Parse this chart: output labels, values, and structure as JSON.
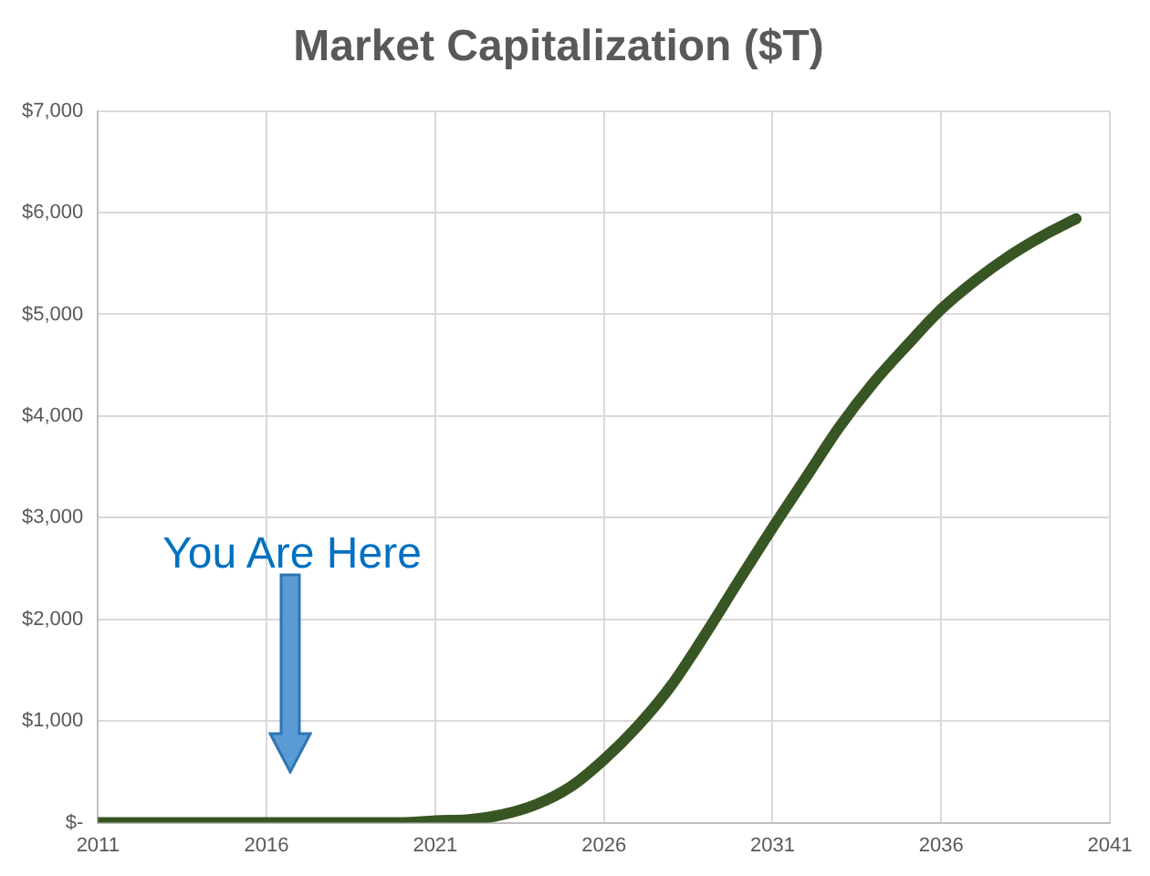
{
  "chart_data": {
    "type": "line",
    "title": "Market Capitalization ($T)",
    "x": [
      2011,
      2012,
      2013,
      2014,
      2015,
      2016,
      2017,
      2018,
      2019,
      2020,
      2021,
      2022,
      2023,
      2024,
      2025,
      2026,
      2027,
      2028,
      2029,
      2030,
      2031,
      2032,
      2033,
      2034,
      2035,
      2036,
      2037,
      2038,
      2039,
      2040
    ],
    "series": [
      {
        "color": "#375623",
        "values": [
          0,
          0,
          0,
          0,
          0,
          0,
          0,
          0,
          0,
          0,
          20,
          30,
          80,
          180,
          350,
          620,
          950,
          1350,
          1850,
          2380,
          2900,
          3400,
          3900,
          4330,
          4700,
          5050,
          5330,
          5570,
          5770,
          5940
        ]
      }
    ],
    "xlim": [
      2011,
      2041
    ],
    "xticks": [
      2011,
      2016,
      2021,
      2026,
      2031,
      2036,
      2041
    ],
    "ylim": [
      0,
      7000
    ],
    "yticks": [
      {
        "value": 0,
        "label": "$-"
      },
      {
        "value": 1000,
        "label": "$1,000"
      },
      {
        "value": 2000,
        "label": "$2,000"
      },
      {
        "value": 3000,
        "label": "$3,000"
      },
      {
        "value": 4000,
        "label": "$4,000"
      },
      {
        "value": 5000,
        "label": "$5,000"
      },
      {
        "value": 6000,
        "label": "$6,000"
      },
      {
        "value": 7000,
        "label": "$7,000"
      }
    ],
    "grid": true,
    "legend": false,
    "marker": "none",
    "line_style": "solid",
    "annotations": [
      "You Are Here"
    ]
  }
}
